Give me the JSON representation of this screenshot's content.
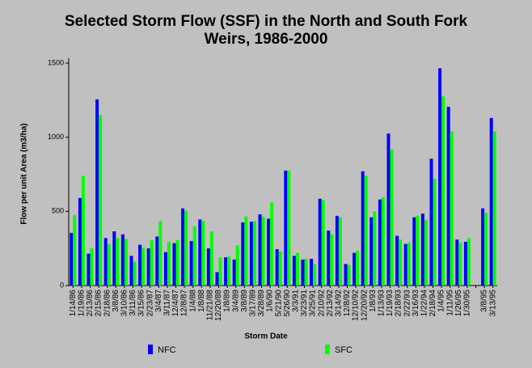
{
  "chart_data": {
    "type": "bar",
    "title": [
      "Selected Storm Flow (SSF) in the North and South Fork",
      "Weirs, 1986-2000"
    ],
    "x_label": "Storm Date",
    "y_label": "Flow per unit Area (m3/ha)",
    "categories": [
      "1/14/86",
      "1/19/86",
      "2/13/86",
      "2/15/86",
      "2/18/86",
      "3/8/86",
      "3/10/86",
      "3/11/86",
      "3/15/86",
      "2/23/87",
      "3/4/87",
      "3/11/87",
      "12/4/87",
      "12/8/87",
      "1/4/88",
      "1/8/88",
      "11/21/88",
      "12/20/88",
      "1/8/89",
      "3/4/89",
      "3/8/89",
      "3/17/89",
      "3/28/89",
      "1/6/90",
      "5/21/90",
      "5/26/90",
      "3/3/91",
      "3/23/91",
      "3/25/91",
      "2/10/92",
      "2/13/92",
      "3/14/92",
      "12/8/92",
      "12/10/92",
      "12/20/92",
      "1/8/93",
      "1/13/93",
      "1/19/93",
      "2/18/93",
      "2/22/93",
      "3/16/93",
      "1/22/94",
      "2/18/94",
      "1/4/95",
      "1/11/95",
      "1/26/95",
      "1/30/95",
      null,
      "3/8/95",
      "3/13/95"
    ],
    "series": [
      {
        "name": "NFC",
        "color": "#0000ff",
        "values": [
          355,
          590,
          215,
          1255,
          320,
          365,
          345,
          200,
          275,
          250,
          330,
          225,
          285,
          520,
          300,
          445,
          250,
          90,
          190,
          175,
          425,
          430,
          480,
          450,
          245,
          775,
          200,
          175,
          180,
          585,
          370,
          470,
          145,
          220,
          770,
          460,
          580,
          1025,
          335,
          280,
          460,
          485,
          855,
          1465,
          1205,
          310,
          295,
          null,
          520,
          1130
        ]
      },
      {
        "name": "SFC",
        "color": "#00ff00",
        "values": [
          475,
          740,
          250,
          1150,
          280,
          320,
          315,
          160,
          255,
          305,
          435,
          295,
          305,
          505,
          400,
          435,
          365,
          190,
          195,
          270,
          465,
          435,
          465,
          560,
          230,
          775,
          220,
          180,
          145,
          575,
          345,
          460,
          140,
          235,
          740,
          500,
          595,
          915,
          310,
          290,
          470,
          440,
          720,
          1275,
          1040,
          290,
          320,
          null,
          490,
          1040
        ]
      }
    ],
    "ylim": [
      0,
      1500
    ],
    "yticks": [
      0,
      500,
      1000,
      1500
    ],
    "grid": false,
    "legend": "bottom"
  }
}
